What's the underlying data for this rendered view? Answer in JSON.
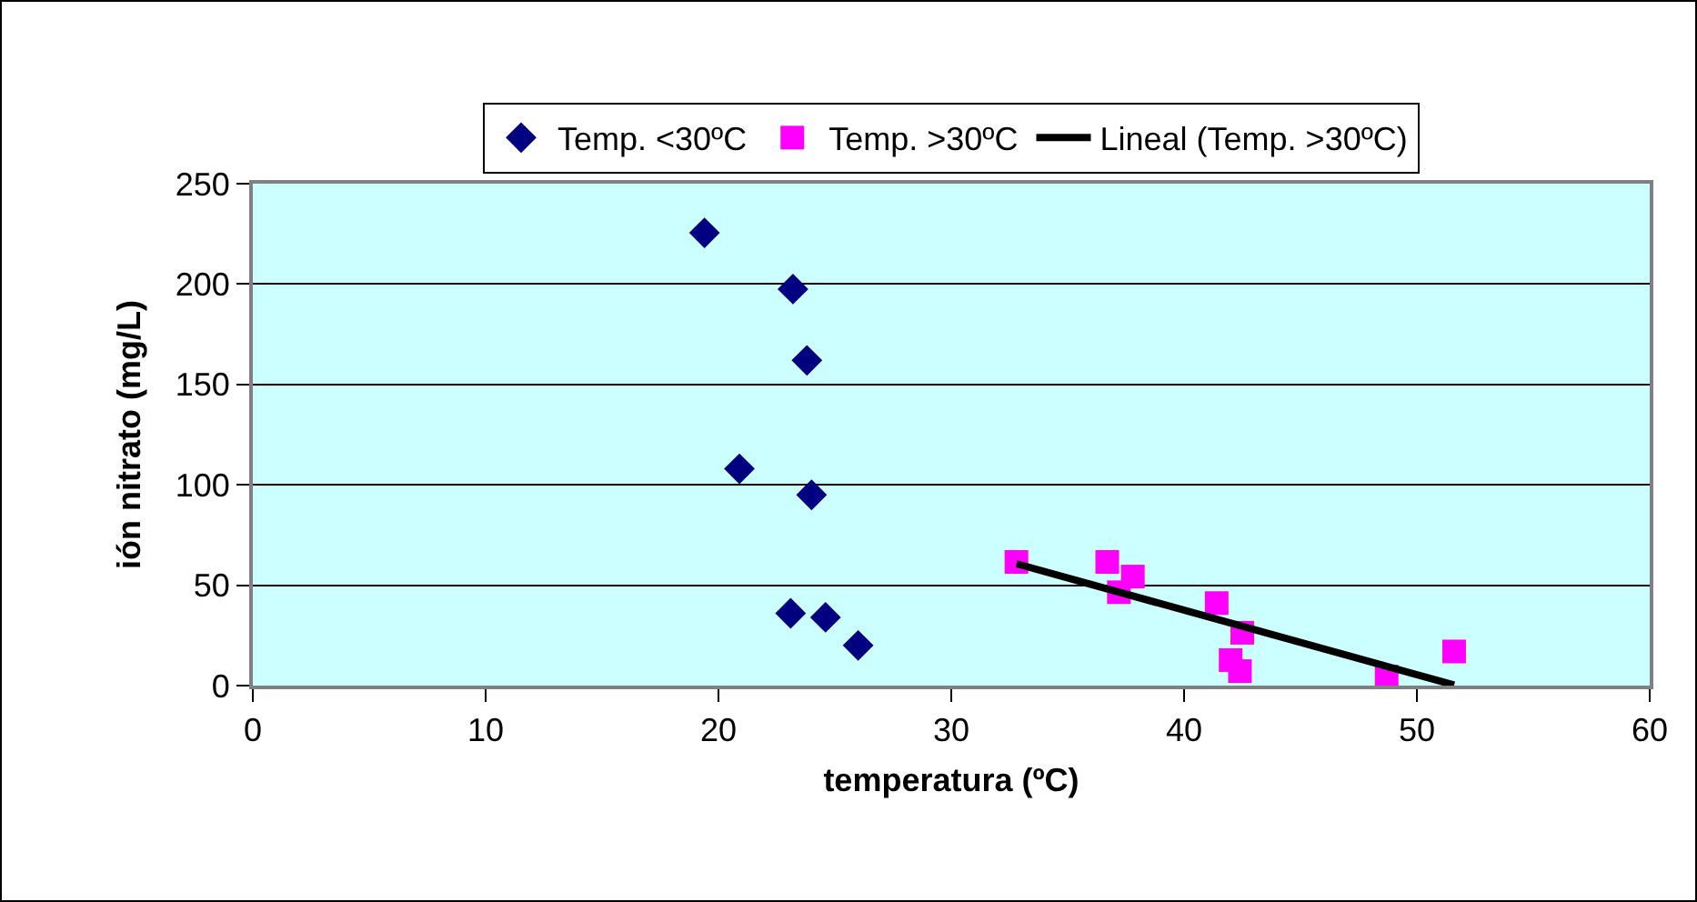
{
  "chart_data": {
    "type": "scatter",
    "xlabel": "temperatura (ºC)",
    "ylabel": "ión nitrato (mg/L)",
    "xlim": [
      0,
      60
    ],
    "xticks": [
      0,
      10,
      20,
      30,
      40,
      50,
      60
    ],
    "ylim": [
      0,
      250
    ],
    "yticks": [
      0,
      50,
      100,
      150,
      200,
      250
    ],
    "grid": "y",
    "legend": "top",
    "series": [
      {
        "name": "Temp. <30ºC",
        "color": "#000080",
        "marker": "diamond",
        "x": [
          19.4,
          23.2,
          23.8,
          20.9,
          24.0,
          23.1,
          24.6,
          26.0
        ],
        "values": [
          225.5,
          197.5,
          162,
          108,
          95,
          36,
          34,
          20
        ]
      },
      {
        "name": "Temp. >30ºC",
        "color": "#ff00ff",
        "marker": "square",
        "x": [
          32.8,
          36.7,
          37.8,
          37.2,
          41.4,
          42.5,
          42.0,
          42.4,
          48.7,
          51.6
        ],
        "values": [
          61.6,
          61.6,
          54.3,
          46.5,
          41.1,
          26.3,
          12.7,
          7.2,
          4.5,
          17
        ]
      },
      {
        "name": "Lineal (Temp. >30ºC)",
        "type": "line",
        "color": "#000000",
        "marker": "none",
        "line_style": "solid",
        "x": [
          32.8,
          51.6
        ],
        "values": [
          60.7,
          0.3
        ]
      }
    ]
  }
}
